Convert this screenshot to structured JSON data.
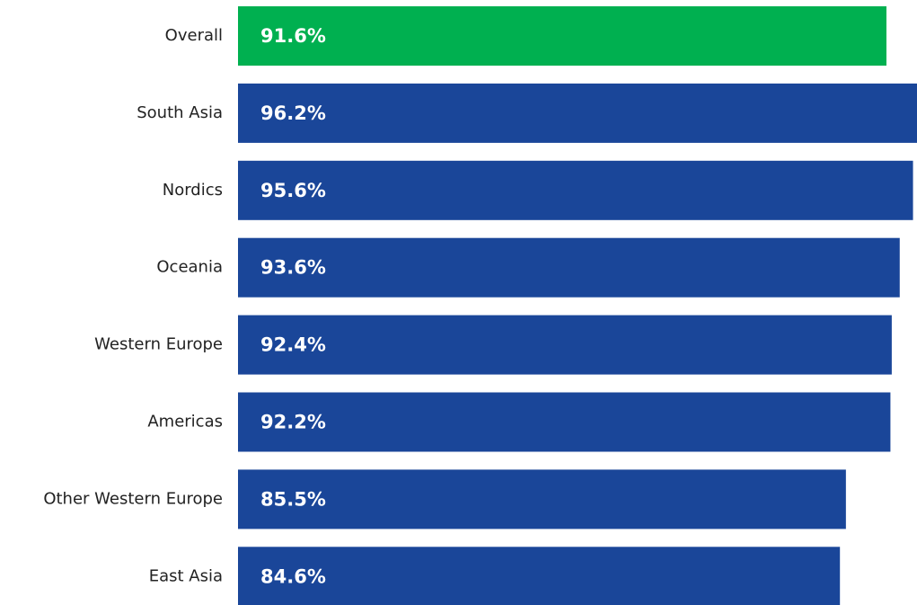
{
  "chart_data": {
    "type": "barh",
    "categories": [
      "Overall",
      "South Asia",
      "Nordics",
      "Oceania",
      "Western Europe",
      "Americas",
      "Other Western Europe",
      "East Asia"
    ],
    "values": [
      91.6,
      96.2,
      95.6,
      93.6,
      92.4,
      92.2,
      85.5,
      84.6
    ],
    "value_labels": [
      "91.6%",
      "96.2%",
      "95.6%",
      "93.6%",
      "92.4%",
      "92.2%",
      "85.5%",
      "84.6%"
    ],
    "colors": [
      "#00b050",
      "#1a4699",
      "#1a4699",
      "#1a4699",
      "#1a4699",
      "#1a4699",
      "#1a4699",
      "#1a4699"
    ],
    "xlim": [
      -6,
      96.2
    ]
  }
}
